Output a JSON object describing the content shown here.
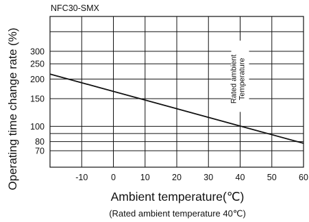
{
  "chart_data": {
    "type": "line",
    "model": "NFC30-SMX",
    "xlabel": "Ambient temperature(℃)",
    "xlabel_sub": "(Rated ambient temperature 40℃)",
    "ylabel": "Operating time change rate (%)",
    "x_scale": "linear",
    "y_scale": "log",
    "xlim": [
      -20,
      60
    ],
    "ylim": [
      55,
      500
    ],
    "x_ticks": [
      {
        "value": -10,
        "label": "-10"
      },
      {
        "value": 0,
        "label": "0"
      },
      {
        "value": 10,
        "label": "10"
      },
      {
        "value": 20,
        "label": "20"
      },
      {
        "value": 30,
        "label": "30"
      },
      {
        "value": 40,
        "label": "40"
      },
      {
        "value": 50,
        "label": "50"
      },
      {
        "value": 60,
        "label": "60"
      }
    ],
    "y_ticks": [
      {
        "value": 70,
        "label": "70"
      },
      {
        "value": 80,
        "label": "80"
      },
      {
        "value": 100,
        "label": "100"
      },
      {
        "value": 150,
        "label": "150"
      },
      {
        "value": 200,
        "label": "200"
      },
      {
        "value": 250,
        "label": "250"
      },
      {
        "value": 300,
        "label": "300"
      }
    ],
    "y_extra_gridlines": [
      90,
      400
    ],
    "grid": true,
    "series": [
      {
        "x": [
          -20,
          60
        ],
        "y": [
          215,
          78
        ],
        "color": "#111111"
      }
    ],
    "annotation": {
      "lines": [
        "Rated ambient",
        "Temperature"
      ],
      "x": 40
    }
  }
}
